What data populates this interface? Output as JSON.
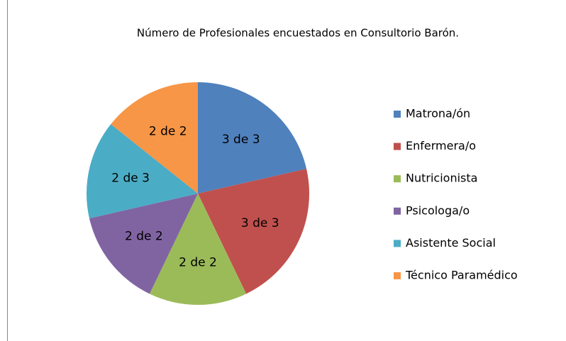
{
  "chart_data": {
    "type": "pie",
    "title": "Número de Profesionales encuestados en Consultorio Barón.",
    "categories": [
      "Matrona/ón",
      "Enfermera/o",
      "Nutricionista",
      "Psicologa/o",
      "Asistente Social",
      "Técnico Paramédico"
    ],
    "values": [
      3,
      3,
      2,
      2,
      2,
      2
    ],
    "value_labels": [
      "3 de 3",
      "3 de 3",
      "2 de 2",
      "2 de 2",
      "2 de 3",
      "2 de 2"
    ],
    "colors": [
      "#4F81BD",
      "#C0504D",
      "#9BBB59",
      "#8064A2",
      "#4BACC6",
      "#F79646"
    ],
    "legend": "right"
  }
}
